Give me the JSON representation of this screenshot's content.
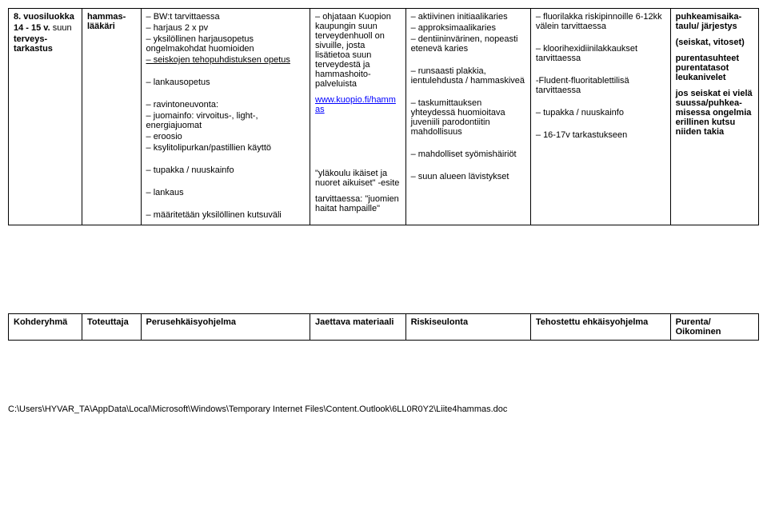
{
  "row1": {
    "c1": {
      "title": "8. vuosiluokka",
      "l2": "14 - 15 v.",
      "l3": "suun",
      "l4": "terveys-tarkastus"
    },
    "c2": "hammas-lääkäri",
    "c3": {
      "items": [
        "– BW:t tarvittaessa",
        "– harjaus 2 x pv",
        "– yksilöllinen harjausopetus ongelmakohdat huomioiden",
        "",
        "– lankausopetus",
        "",
        "– ravintoneuvonta:",
        "– juomainfo: virvoitus-, light-, energiajuomat",
        "– eroosio",
        "– ksylitolipurkan/pastillien käyttö",
        "",
        "– tupakka / nuuskainfo",
        "",
        "– lankaus",
        "",
        "– määritetään yksilöllinen kutsuväli"
      ],
      "underline": "– seiskojen tehopuhdistuksen opetus"
    },
    "c4": {
      "intro": "– ohjataan Kuopion kaupungin suun terveydenhuoll on sivuille, josta lisätietoa suun terveydestä ja hammashoito-palveluista",
      "link": "www.kuopio.fi/hammas",
      "extra1": "\"yläkoulu ikäiset ja nuoret aikuiset\" -esite",
      "extra2": "tarvittaessa: \"juomien haitat hampaille\""
    },
    "c5": {
      "items": [
        "– aktiivinen initiaalikaries",
        "– approksimaalikaries",
        "– dentiininvärinen, nopeasti etenevä karies",
        "",
        "– runsaasti plakkia, ientulehdusta / hammaskiveä",
        "",
        "– taskumittauksen yhteydessä huomioitava juveniili parodontiitin mahdollisuus",
        "",
        "– mahdolliset syömishäiriöt",
        "",
        "– suun alueen lävistykset"
      ]
    },
    "c6": {
      "items": [
        "– fluorilakka riskipinnoille 6-12kk välein tarvittaessa",
        "",
        "– kloorihexidiinilakkaukset tarvittaessa",
        "",
        " -Fludent-fluoritablettilisä tarvittaessa",
        "",
        "– tupakka / nuuskainfo",
        "",
        "– 16-17v tarkastukseen"
      ]
    },
    "c7": {
      "l1": "puhkeamisaika-taulu/ järjestys",
      "l2": "(seiskat, vitoset)",
      "l3": "purentasuhteet purentatasot leukanivelet",
      "l4": "jos seiskat ei vielä suussa/puhkea-misessa ongelmia erillinen kutsu niiden takia"
    }
  },
  "row2": {
    "c1": "Kohderyhmä",
    "c2": "Toteuttaja",
    "c3": "Perusehkäisyohjelma",
    "c4": "Jaettava materiaali",
    "c5": "Riskiseulonta",
    "c6": "Tehostettu ehkäisyohjelma",
    "c7": "Purenta/ Oikominen"
  },
  "footer": "C:\\Users\\HYVAR_TA\\AppData\\Local\\Microsoft\\Windows\\Temporary Internet Files\\Content.Outlook\\6LL0R0Y2\\Liite4hammas.doc"
}
